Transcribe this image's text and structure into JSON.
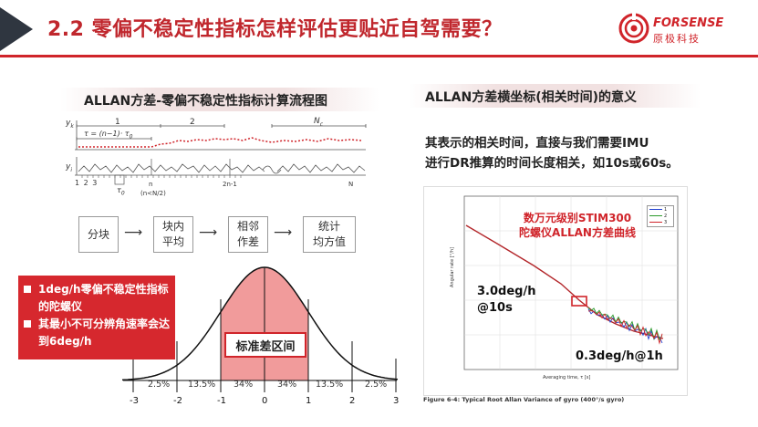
{
  "header": {
    "title": "2.2 零偏不稳定性指标怎样评估更贴近自驾需要？",
    "logo_name": "FORSENSE",
    "logo_sub": "原极科技",
    "accent_color": "#d0242a"
  },
  "left": {
    "section_title": "ALLAN方差-零偏不稳定性指标计算流程图",
    "top_labels": {
      "seg1": "1",
      "seg2": "2",
      "seg3": "N",
      "seg3_sub": "c",
      "ybar": "y",
      "ybar_sub": "k",
      "tau_eq": "τ = (n−1)· τ",
      "tau_sub": "0",
      "yi": "y",
      "yi_sub": "i",
      "idx": "1 2 3",
      "n_label": "n",
      "n_sub": "(n<N/2)",
      "tau0": "τ",
      "tau0_sub": "0",
      "two_n": "2n-1",
      "big_n": "N"
    },
    "flow": [
      "分块",
      "块内平均",
      "相邻作差",
      "统计均方值"
    ],
    "flow_lines": [
      [
        "分块"
      ],
      [
        "块内",
        "平均"
      ],
      [
        "相邻",
        "作差"
      ],
      [
        "统计",
        "均方值"
      ]
    ],
    "callout": [
      "1deg/h零偏不稳定性指标的陀螺仪",
      "其最小不可分辨角速率会达到6deg/h"
    ],
    "normal": {
      "label": "标准差区间",
      "pcts": [
        "2.5%",
        "13.5%",
        "34%",
        "34%",
        "13.5%",
        "2.5%"
      ],
      "axis": [
        "-3",
        "-2",
        "-1",
        "0",
        "1",
        "2",
        "3"
      ]
    }
  },
  "right": {
    "section_title": "ALLAN方差横坐标(相关时间)的意义",
    "paragraph": [
      "其表示的相关时间，直接与我们需要IMU",
      "进行DR推算的时间长度相关，如10s或60s。"
    ],
    "chart_title": [
      "数万元级别STIM300",
      "陀螺仪ALLAN方差曲线"
    ],
    "ann1": [
      "3.0deg/h",
      "@10s"
    ],
    "ann2": "0.3deg/h@1h",
    "xlabel": "Averaging time, τ [s]",
    "ylabel": "Angular rate [°/h]",
    "legend": [
      "1",
      "2",
      "3"
    ],
    "legend_colors": [
      "#1f3fcf",
      "#2a9a2a",
      "#d0242a"
    ],
    "caption": "Figure 6-4: Typical Root Allan Variance of gyro (400°/s gyro)"
  }
}
